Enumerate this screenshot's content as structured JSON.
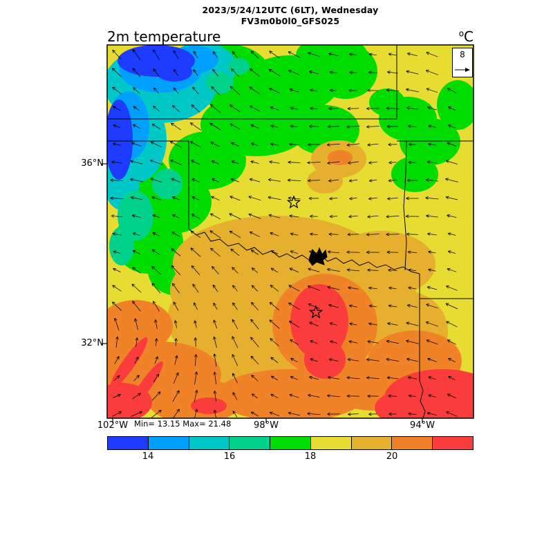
{
  "header": {
    "line1": "2023/5/24/12UTC (6LT), Wednesday",
    "line2": "FV3m0b0l0_GFS025"
  },
  "plot": {
    "title": "2m temperature",
    "units_sup": "o",
    "units_base": "C",
    "min_max": "Min= 13.15 Max= 21.48",
    "wind_ref_value": "8"
  },
  "axes": {
    "lat": [
      {
        "label": "36°N"
      },
      {
        "label": "32°N"
      }
    ],
    "lon": [
      {
        "label": "102°W"
      },
      {
        "label": "98°W"
      },
      {
        "label": "94°W"
      }
    ]
  },
  "palette": {
    "blue": "#1E3CFF",
    "azure": "#00A0FF",
    "cyan": "#00C8C8",
    "aquagreen": "#00D28C",
    "green": "#00DC00",
    "yellow": "#E6DC32",
    "gold": "#E6AF2D",
    "orange": "#F08228",
    "red": "#FA3C3C"
  },
  "colorbar": {
    "colors": [
      "#1E3CFF",
      "#00A0FF",
      "#00C8C8",
      "#00D28C",
      "#00DC00",
      "#E6DC32",
      "#E6AF2D",
      "#F08228",
      "#FA3C3C"
    ],
    "tick_labels": [
      "14",
      "16",
      "18",
      "20"
    ]
  },
  "chart_data": {
    "type": "heatmap",
    "title": "2m temperature",
    "units": "°C",
    "model": "FV3m0b0l0_GFS025",
    "valid_time": "2023/5/24/12UTC (6LT), Wednesday",
    "min": 13.15,
    "max": 21.48,
    "levels": [
      14,
      15,
      16,
      17,
      18,
      19,
      20,
      21
    ],
    "level_colors": [
      "#1E3CFF",
      "#00A0FF",
      "#00C8C8",
      "#00D28C",
      "#00DC00",
      "#E6DC32",
      "#E6AF2D",
      "#F08228",
      "#FA3C3C"
    ],
    "colorbar_tick_labels": [
      14,
      16,
      18,
      20
    ],
    "lat_ticks": [
      "36°N",
      "32°N"
    ],
    "lon_ticks": [
      "102°W",
      "98°W",
      "94°W"
    ],
    "wind_reference_m_s": 8,
    "overlay": "wind vector arrows",
    "legend_position": "bottom"
  }
}
